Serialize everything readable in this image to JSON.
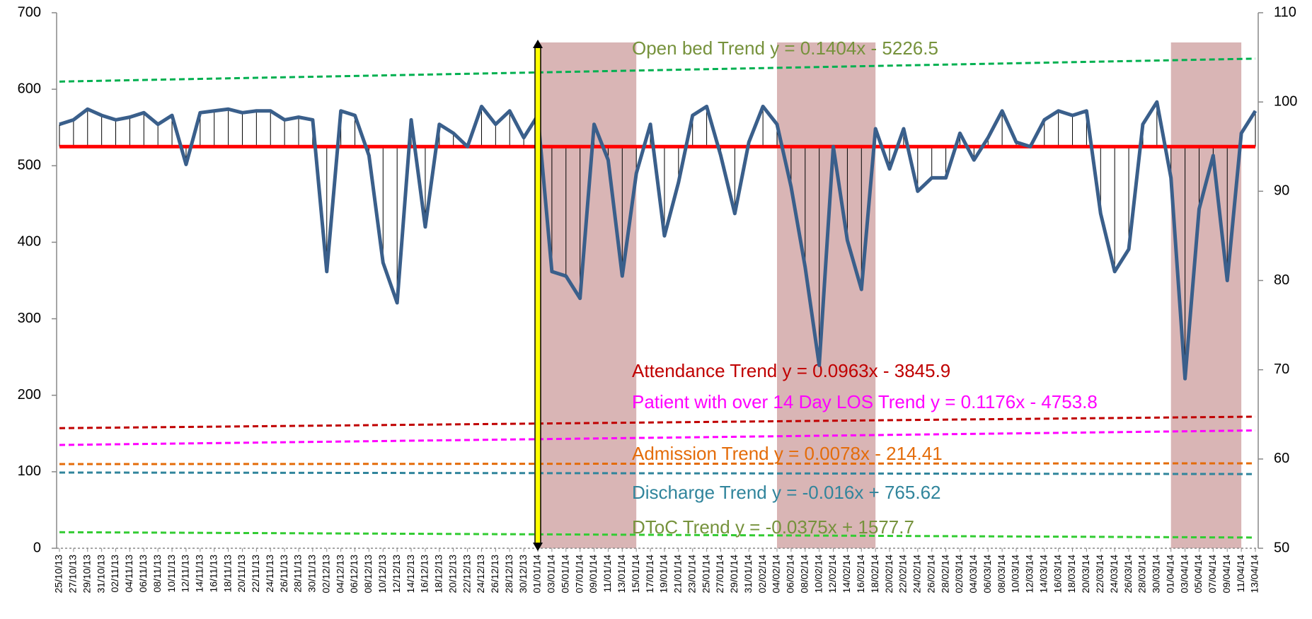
{
  "chart_data": {
    "type": "line",
    "categories": [
      "25/10/13",
      "27/10/13",
      "29/10/13",
      "31/10/13",
      "02/11/13",
      "04/11/13",
      "06/11/13",
      "08/11/13",
      "10/11/13",
      "12/11/13",
      "14/11/13",
      "16/11/13",
      "18/11/13",
      "20/11/13",
      "22/11/13",
      "24/11/13",
      "26/11/13",
      "28/11/13",
      "30/11/13",
      "02/12/13",
      "04/12/13",
      "06/12/13",
      "08/12/13",
      "10/12/13",
      "12/12/13",
      "14/12/13",
      "16/12/13",
      "18/12/13",
      "20/12/13",
      "22/12/13",
      "24/12/13",
      "26/12/13",
      "28/12/13",
      "30/12/13",
      "01/01/14",
      "03/01/14",
      "05/01/14",
      "07/01/14",
      "09/01/14",
      "11/01/14",
      "13/01/14",
      "15/01/14",
      "17/01/14",
      "19/01/14",
      "21/01/14",
      "23/01/14",
      "25/01/14",
      "27/01/14",
      "29/01/14",
      "31/01/14",
      "02/02/14",
      "04/02/14",
      "06/02/14",
      "08/02/14",
      "10/02/14",
      "12/02/14",
      "14/02/14",
      "16/02/14",
      "18/02/14",
      "20/02/14",
      "22/02/14",
      "24/02/14",
      "26/02/14",
      "28/02/14",
      "02/03/14",
      "04/03/14",
      "06/03/14",
      "08/03/14",
      "10/03/14",
      "12/03/14",
      "14/03/14",
      "16/03/14",
      "18/03/14",
      "20/03/14",
      "22/03/14",
      "24/03/14",
      "26/03/14",
      "28/03/14",
      "30/03/14",
      "01/04/14",
      "03/04/14",
      "05/04/14",
      "07/04/14",
      "09/04/14",
      "11/04/14",
      "13/04/14"
    ],
    "series": [
      {
        "axis": "y2",
        "color": "#3a5f8b",
        "values": [
          97.5,
          98,
          99.2,
          98.5,
          98,
          98.3,
          98.8,
          97.5,
          98.5,
          93,
          98.8,
          99,
          99.2,
          98.8,
          99,
          99,
          98,
          98.3,
          98,
          81,
          99,
          98.5,
          94,
          82,
          77.5,
          98,
          86,
          97.5,
          96.5,
          95,
          99.5,
          97.5,
          99,
          96,
          98.5,
          81,
          80.5,
          78,
          97.5,
          93.5,
          80.5,
          92,
          97.5,
          85,
          91,
          98.5,
          99.5,
          94,
          87.5,
          95.5,
          99.5,
          97.5,
          90.5,
          81.5,
          70.5,
          95,
          84.5,
          79,
          97,
          92.5,
          97,
          90,
          91.5,
          91.5,
          96.5,
          93.5,
          96,
          99,
          95.5,
          95,
          98,
          99,
          98.5,
          99,
          87.5,
          81,
          83.5,
          97.5,
          100,
          91.5,
          69,
          88,
          94,
          80,
          96.5,
          99
        ]
      }
    ],
    "target": 95,
    "target_color": "#ff0000",
    "trendlines": [
      {
        "label": "Open bed Trend y = 0.1404x - 5226.5",
        "color": "#00b050",
        "label_color": "#76923c",
        "values": [
          610,
          640
        ]
      },
      {
        "label": "Attendance Trend y = 0.0963x - 3845.9",
        "color": "#c00000",
        "label_color": "#c00000",
        "values": [
          157,
          172
        ]
      },
      {
        "label": "Patient with over 14 Day LOS Trend y = 0.1176x - 4753.8",
        "color": "#ff00ff",
        "label_color": "#ff00ff",
        "values": [
          135,
          154
        ]
      },
      {
        "label": "Admission Trend y = 0.0078x - 214.41",
        "color": "#e46c0a",
        "label_color": "#e46c0a",
        "values": [
          110,
          111
        ]
      },
      {
        "label": "Discharge Trend y = -0.016x + 765.62",
        "color": "#31859c",
        "label_color": "#31859c",
        "values": [
          99,
          97
        ]
      },
      {
        "label": "DToC Trend y = -0.0375x + 1577.7",
        "color": "#33cc33",
        "label_color": "#76923c",
        "values": [
          21,
          14
        ]
      }
    ],
    "shaded_ranges": [
      [
        "01/01/14",
        "15/01/14"
      ],
      [
        "04/02/14",
        "18/02/14"
      ],
      [
        "01/04/14",
        "11/04/14"
      ]
    ],
    "shade_color": "#d9b5b5",
    "marker": "01/01/14",
    "marker_color": "#ffff00",
    "ylim": [
      0,
      700
    ],
    "yticks": [
      0,
      100,
      200,
      300,
      400,
      500,
      600,
      700
    ],
    "y2lim": [
      50,
      110
    ],
    "y2ticks": [
      50,
      60,
      70,
      80,
      90,
      100,
      110
    ]
  }
}
